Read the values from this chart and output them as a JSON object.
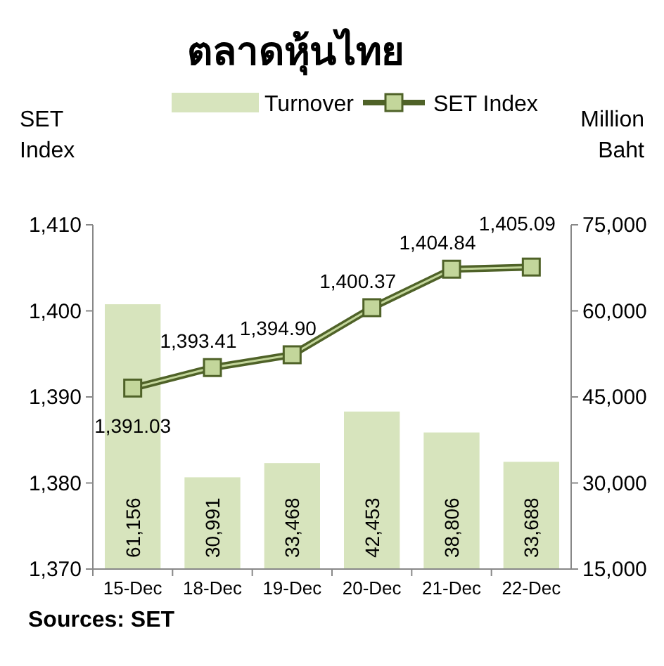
{
  "chart_data": {
    "type": "bar",
    "title": "ตลาดหุ้นไทย",
    "categories": [
      "15-Dec",
      "18-Dec",
      "19-Dec",
      "20-Dec",
      "21-Dec",
      "22-Dec"
    ],
    "series": [
      {
        "name": "Turnover",
        "axis": "y2",
        "color": "#d7e4bd",
        "values": [
          61156,
          30991,
          33468,
          42453,
          38806,
          33688
        ],
        "value_labels": [
          "61,156",
          "30,991",
          "33,468",
          "42,453",
          "38,806",
          "33,688"
        ]
      },
      {
        "name": "SET Index",
        "type": "line",
        "axis": "y",
        "color": "#4f6228",
        "values": [
          1391.03,
          1393.41,
          1394.9,
          1400.37,
          1404.84,
          1405.09
        ],
        "value_labels": [
          "1,391.03",
          "1,393.41",
          "1,394.90",
          "1,400.37",
          "1,404.84",
          "1,405.09"
        ]
      }
    ],
    "ylabel": "SET Index",
    "y2label": "Million Baht",
    "ylim": [
      1370,
      1410
    ],
    "yticks": [
      {
        "value": 1370,
        "label": "1,370"
      },
      {
        "value": 1380,
        "label": "1,380"
      },
      {
        "value": 1390,
        "label": "1,390"
      },
      {
        "value": 1400,
        "label": "1,400"
      },
      {
        "value": 1410,
        "label": "1,410"
      }
    ],
    "y2lim": [
      15000,
      75000
    ],
    "y2ticks": [
      {
        "value": 15000,
        "label": "15,000"
      },
      {
        "value": 30000,
        "label": "30,000"
      },
      {
        "value": 45000,
        "label": "45,000"
      },
      {
        "value": 60000,
        "label": "60,000"
      },
      {
        "value": 75000,
        "label": "75,000"
      }
    ],
    "marker": "square",
    "legend": "top",
    "annotations": [
      "Sources: SET"
    ]
  }
}
